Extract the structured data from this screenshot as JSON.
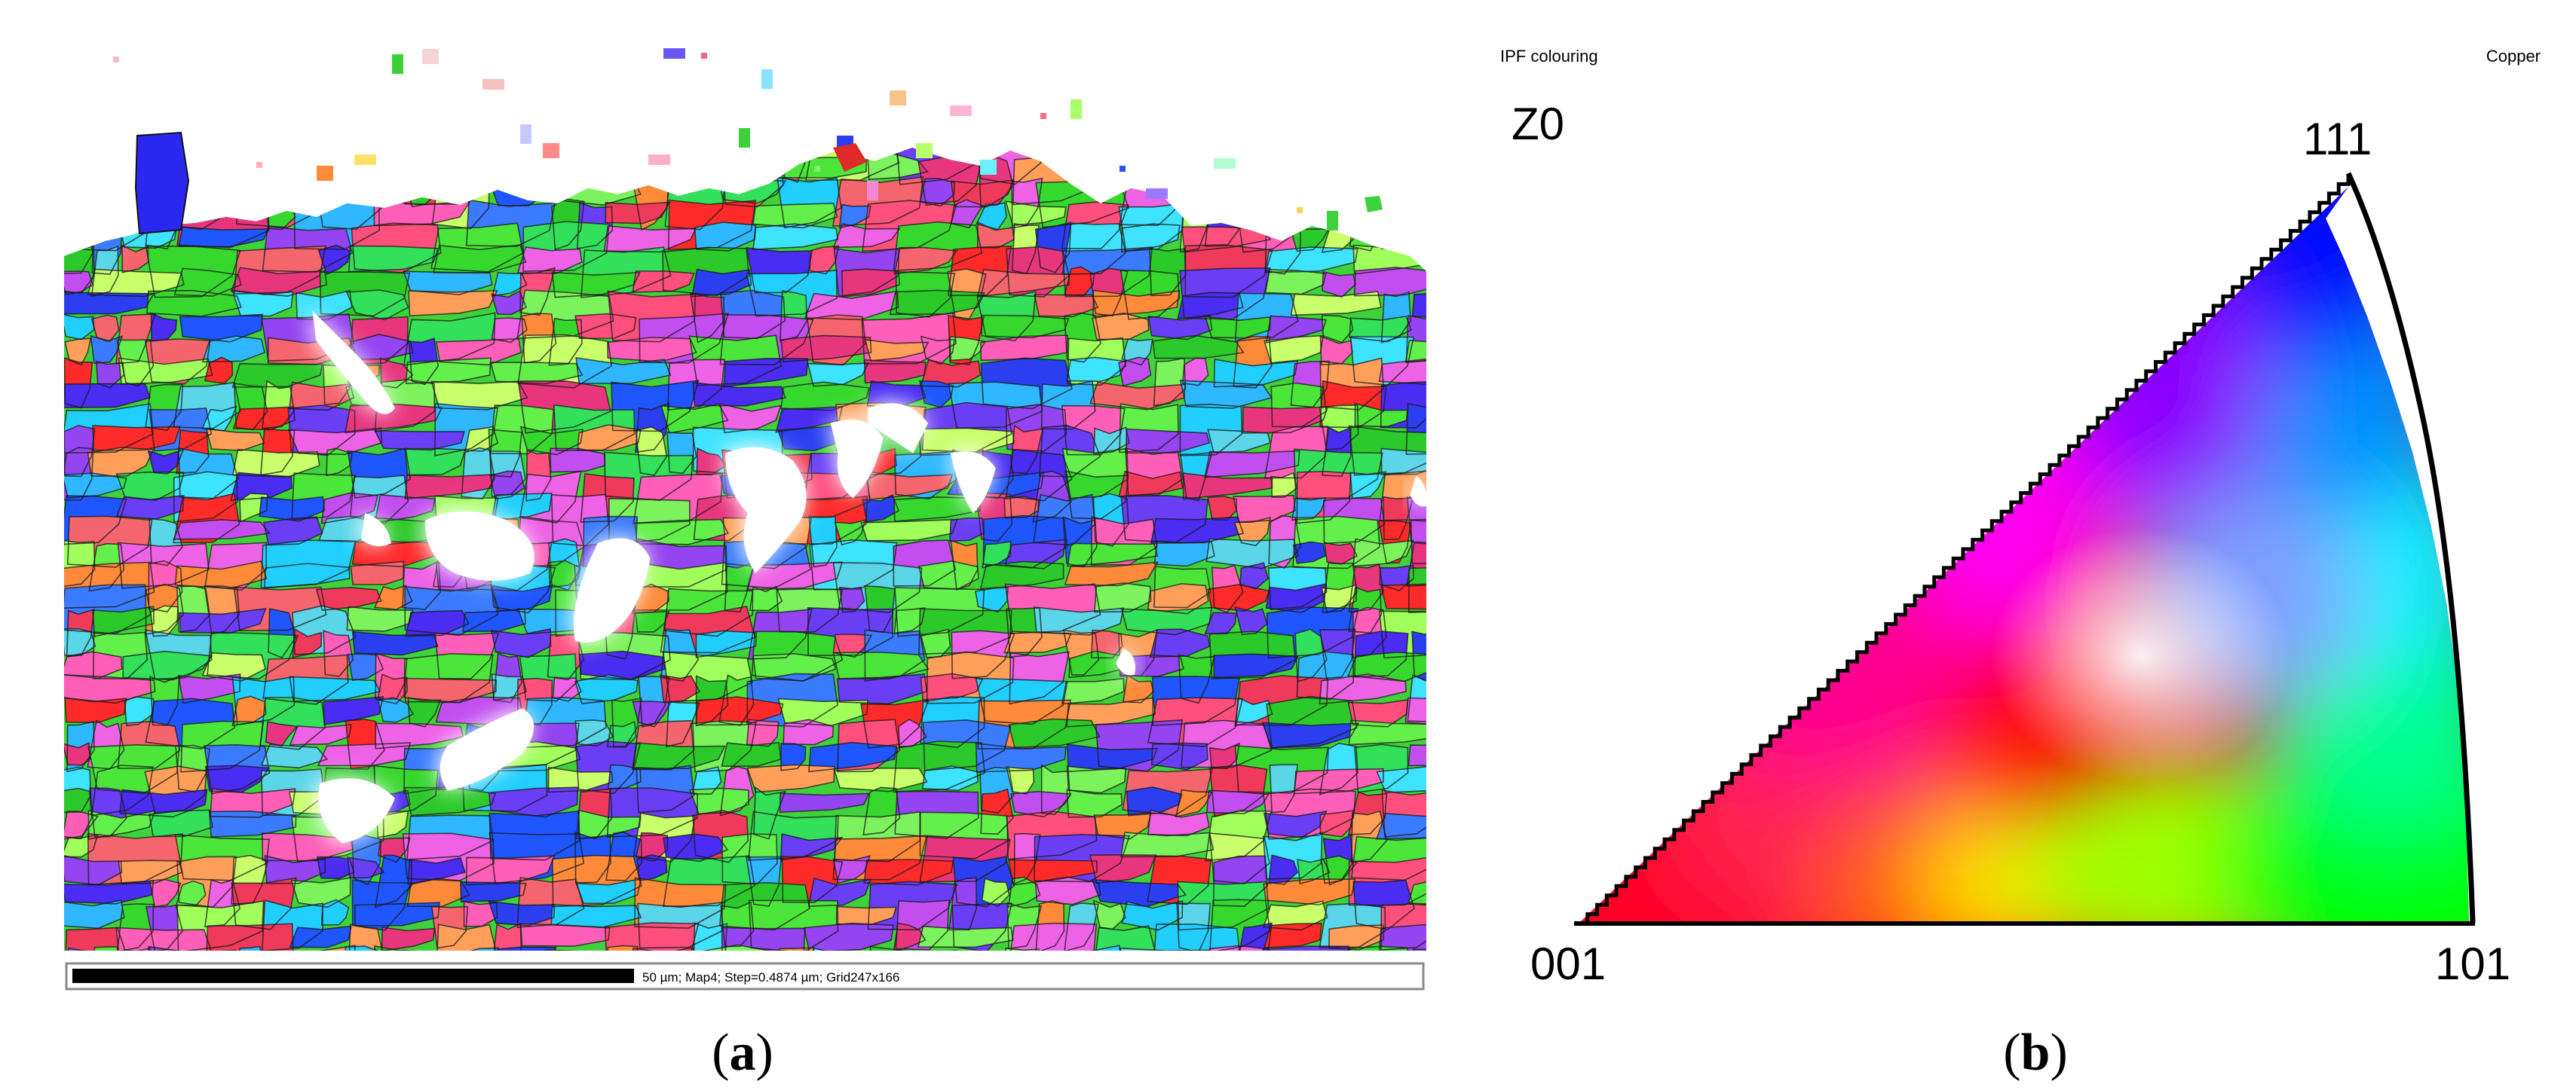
{
  "panel_a": {
    "caption": "(a)",
    "caption_letter": "a",
    "scale_bar_text": "50 µm; Map4; Step=0.4874 µm; Grid247x166"
  },
  "panel_b": {
    "caption": "(b)",
    "caption_letter": "b",
    "header_left": "IPF colouring",
    "header_right": "Copper",
    "direction": "Z0",
    "corner_001": "001",
    "corner_101": "101",
    "corner_111": "111"
  },
  "colors": {
    "red_001": "#ff0000",
    "green_101": "#00ff00",
    "blue_111": "#0000ff"
  }
}
